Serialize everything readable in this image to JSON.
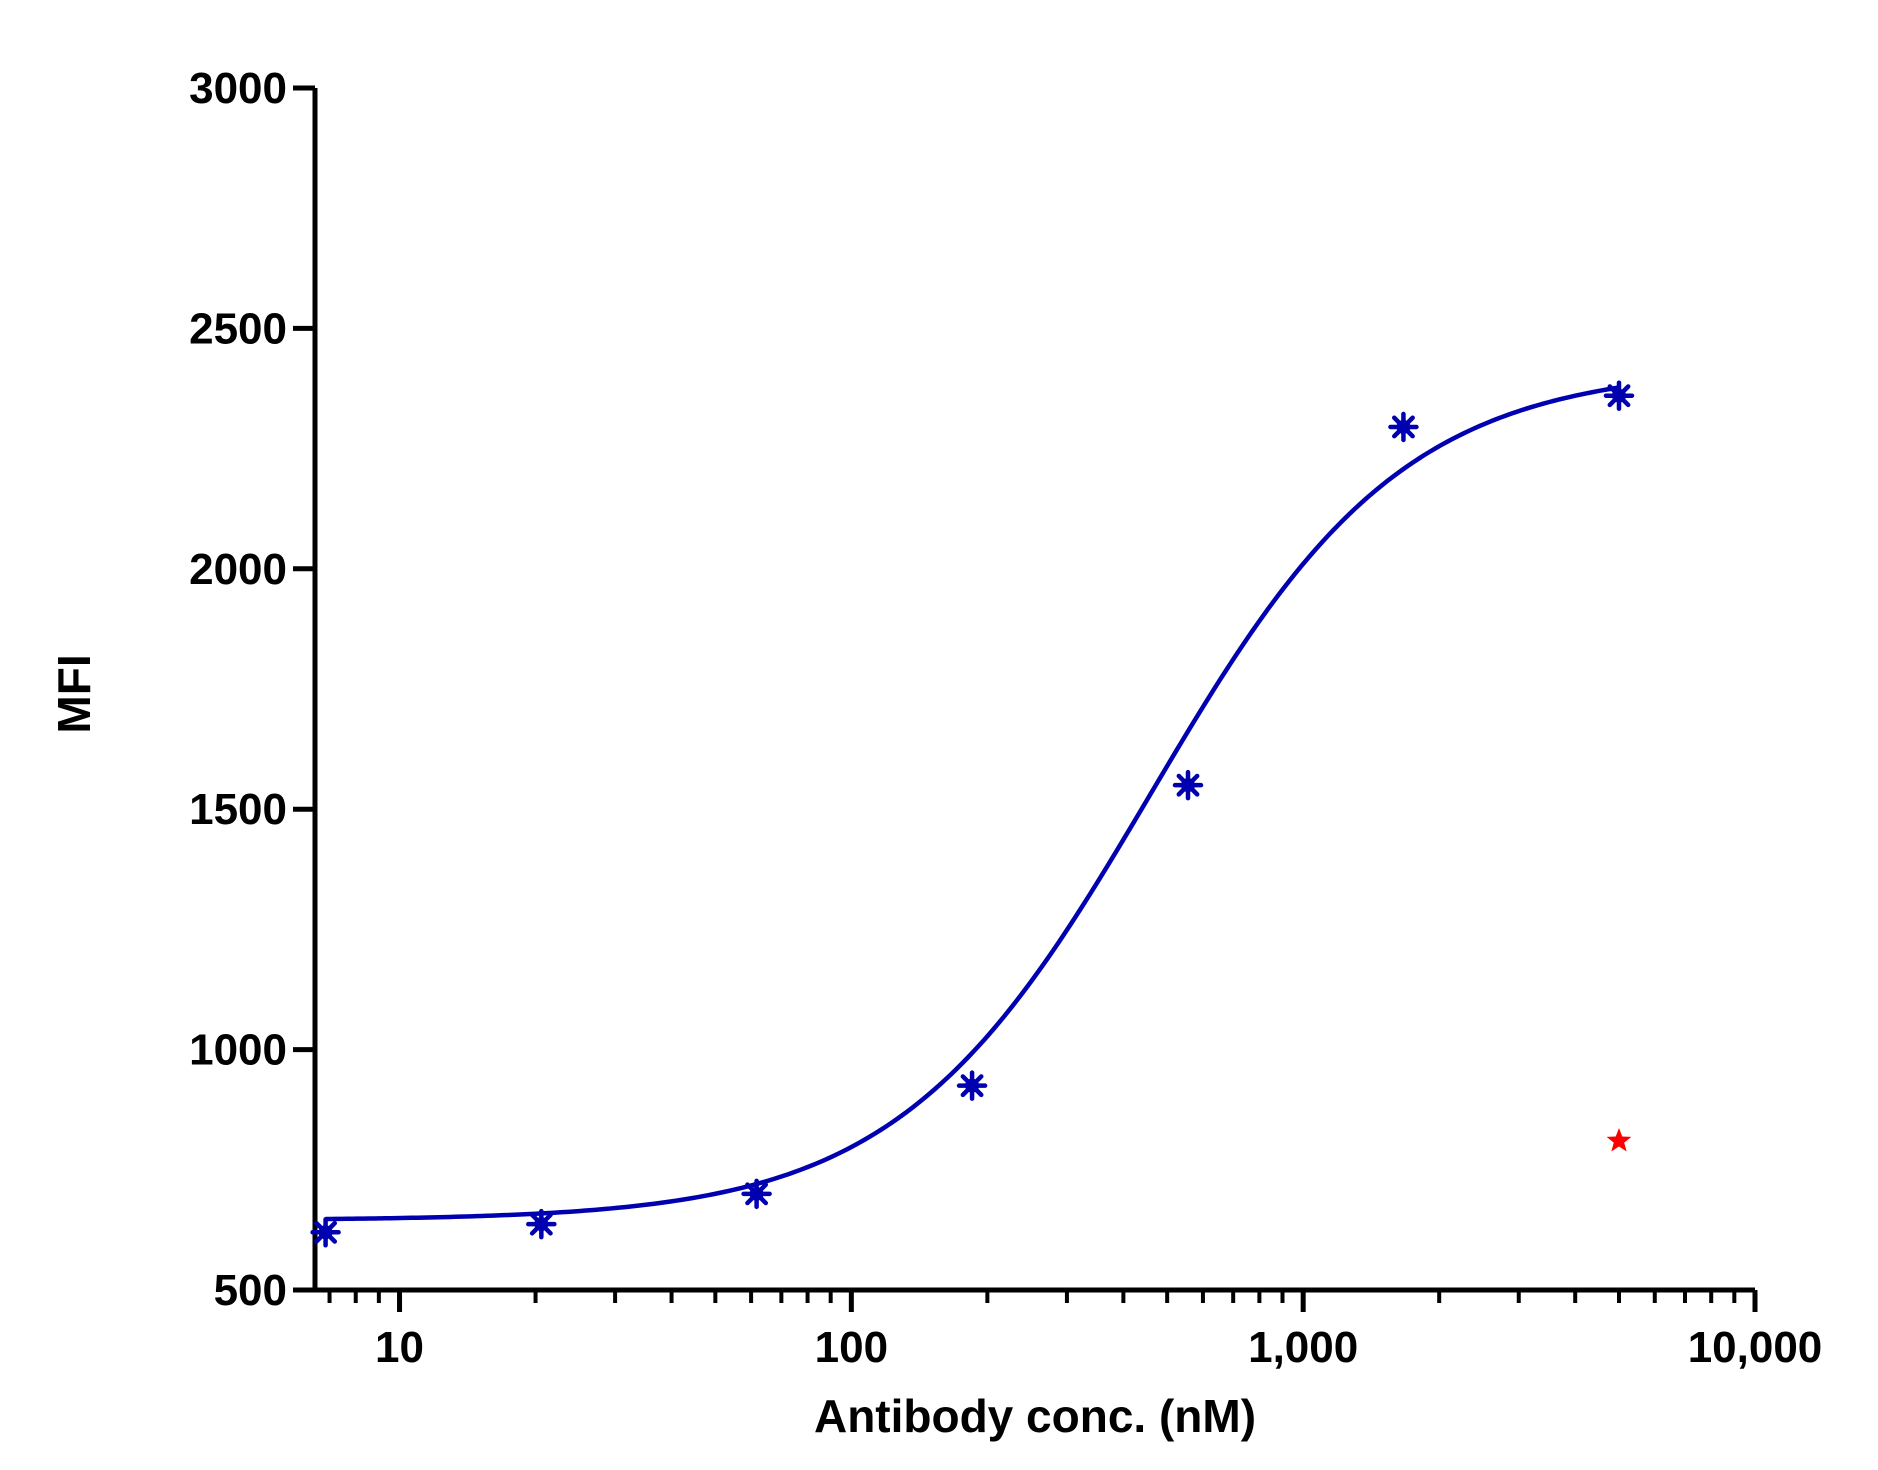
{
  "chart_data": {
    "type": "scatter",
    "title": "",
    "xlabel": "Antibody conc. (nM)",
    "ylabel": "MFI",
    "x_scale": "log",
    "xlim": [
      6.5,
      10000
    ],
    "ylim": [
      500,
      3000
    ],
    "x_ticks": [
      10,
      100,
      1000,
      10000
    ],
    "x_tick_labels": [
      "10",
      "100",
      "1,000",
      "10,000"
    ],
    "y_ticks": [
      500,
      1000,
      1500,
      2000,
      2500,
      3000
    ],
    "y_tick_labels": [
      "500",
      "1000",
      "1500",
      "2000",
      "2500",
      "3000"
    ],
    "grid": false,
    "legend": "none",
    "series": [
      {
        "marker": "asterisk",
        "color": "#0000b0",
        "points": [
          {
            "x": 6.86,
            "y": 620
          },
          {
            "x": 20.6,
            "y": 637
          },
          {
            "x": 61.7,
            "y": 700
          },
          {
            "x": 185,
            "y": 925
          },
          {
            "x": 556,
            "y": 1550
          },
          {
            "x": 1667,
            "y": 2295
          },
          {
            "x": 5000,
            "y": 2360
          }
        ]
      },
      {
        "marker": "star",
        "color": "#ff0000",
        "points": [
          {
            "x": 5000,
            "y": 810
          }
        ]
      }
    ],
    "fit_curve": {
      "model": "4PL",
      "color": "#0000b0",
      "bottom": 645,
      "top": 2420,
      "ec50": 460,
      "hill": 1.55,
      "x_range": [
        6.86,
        5000
      ]
    }
  }
}
